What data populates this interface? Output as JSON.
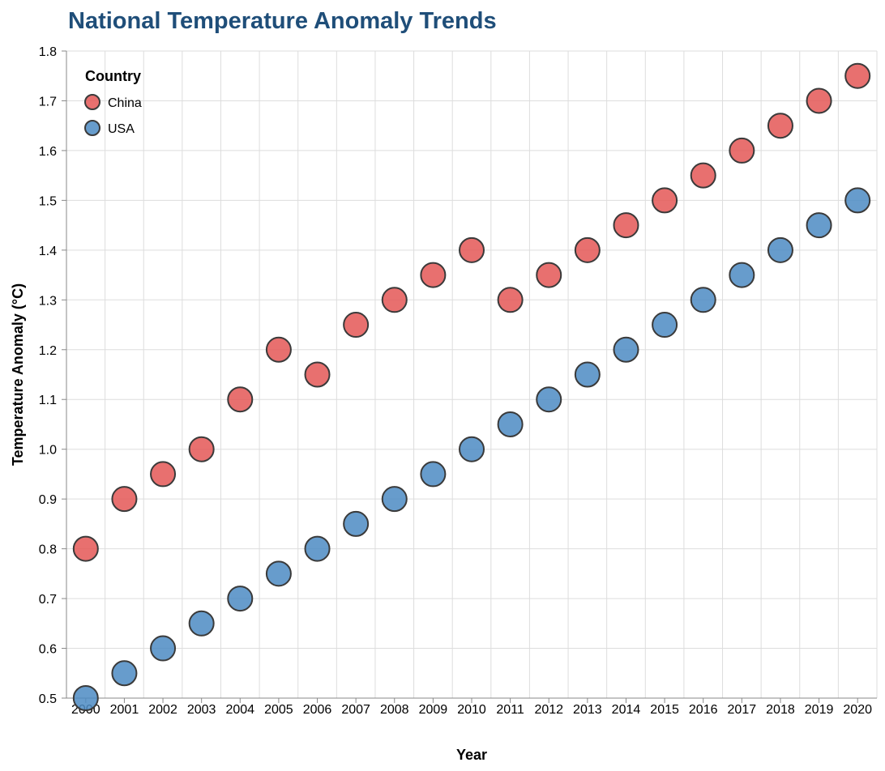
{
  "chart_data": {
    "type": "scatter",
    "title": "National Temperature Anomaly Trends",
    "xlabel": "Year",
    "ylabel": "Temperature Anomaly (°C)",
    "x": [
      "2000",
      "2001",
      "2002",
      "2003",
      "2004",
      "2005",
      "2006",
      "2007",
      "2008",
      "2009",
      "2010",
      "2011",
      "2012",
      "2013",
      "2014",
      "2015",
      "2016",
      "2017",
      "2018",
      "2019",
      "2020"
    ],
    "ylim": [
      0.5,
      1.8
    ],
    "yticks": [
      "0.5",
      "0.6",
      "0.7",
      "0.8",
      "0.9",
      "1.0",
      "1.1",
      "1.2",
      "1.3",
      "1.4",
      "1.5",
      "1.6",
      "1.7",
      "1.8"
    ],
    "grid": true,
    "legend_title": "Country",
    "legend_position": "top-left",
    "series": [
      {
        "name": "China",
        "color": "#e45756",
        "values": [
          0.8,
          0.9,
          0.95,
          1.0,
          1.1,
          1.2,
          1.15,
          1.25,
          1.3,
          1.35,
          1.4,
          1.3,
          1.35,
          1.4,
          1.45,
          1.5,
          1.55,
          1.6,
          1.65,
          1.7,
          1.75
        ]
      },
      {
        "name": "USA",
        "color": "#4c8bc3",
        "values": [
          0.5,
          0.55,
          0.6,
          0.65,
          0.7,
          0.75,
          0.8,
          0.85,
          0.9,
          0.95,
          1.0,
          1.05,
          1.1,
          1.15,
          1.2,
          1.25,
          1.3,
          1.35,
          1.4,
          1.45,
          1.5
        ]
      }
    ],
    "title_color": "#1f4e79"
  }
}
